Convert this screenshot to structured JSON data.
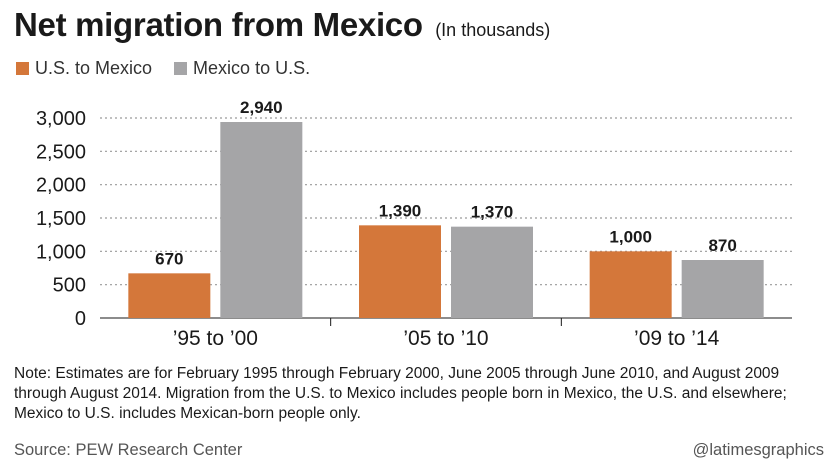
{
  "header": {
    "title": "Net migration from Mexico",
    "subtitle": "(In thousands)"
  },
  "legend": [
    {
      "label": "U.S. to Mexico",
      "color": "#d4773a"
    },
    {
      "label": "Mexico to U.S.",
      "color": "#a5a5a7"
    }
  ],
  "chart_data": {
    "type": "bar",
    "categories": [
      "’95 to ’00",
      "’05 to ’10",
      "’09 to ’14"
    ],
    "series": [
      {
        "name": "U.S. to Mexico",
        "values": [
          670,
          1390,
          1000
        ],
        "labels": [
          "670",
          "1,390",
          "1,000"
        ],
        "color": "#d4773a"
      },
      {
        "name": "Mexico to U.S.",
        "values": [
          2940,
          1370,
          870
        ],
        "labels": [
          "2,940",
          "1,370",
          "870"
        ],
        "color": "#a5a5a7"
      }
    ],
    "yticks": [
      0,
      500,
      1000,
      1500,
      2000,
      2500,
      3000
    ],
    "ytick_labels": [
      "0",
      "500",
      "1,000",
      "1,500",
      "2,000",
      "2,500",
      "3,000"
    ],
    "ylim": [
      0,
      3000
    ],
    "grid": true,
    "legend_position": "top-left"
  },
  "footer": {
    "note": "Note: Estimates are for February 1995 through February 2000, June 2005 through June 2010, and August 2009 through August 2014. Migration from the U.S. to Mexico includes people born in Mexico, the U.S. and elsewhere; Mexico to U.S. includes Mexican-born people only.",
    "source": "Source: PEW Research Center",
    "credit": "@latimesgraphics"
  }
}
